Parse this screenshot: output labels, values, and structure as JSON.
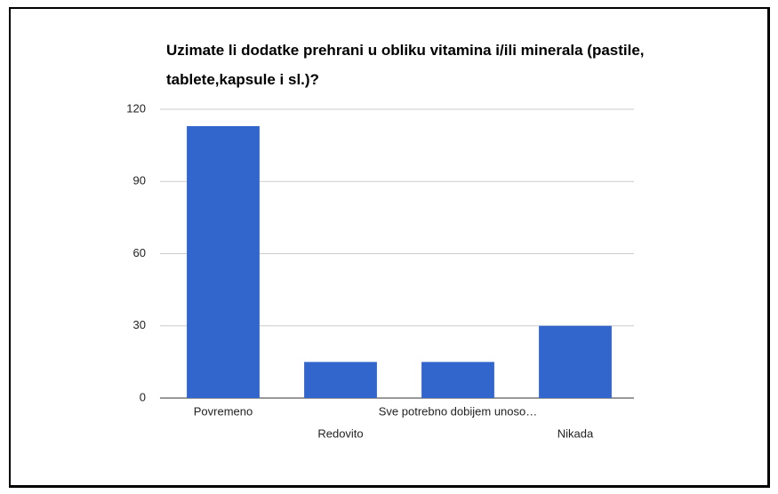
{
  "chart_data": {
    "type": "bar",
    "title": "Uzimate li dodatke prehrani u obliku vitamina i/ili minerala (pastile, tablete,kapsule i sl.)?",
    "categories": [
      "Povremeno",
      "Redovito",
      "Sve potrebno dobijem unoso…",
      "Nikada"
    ],
    "values": [
      113,
      15,
      15,
      30
    ],
    "color": "#3366cc",
    "ylim": [
      0,
      120
    ],
    "yticks": [
      0,
      30,
      60,
      90,
      120
    ],
    "grid": true
  }
}
